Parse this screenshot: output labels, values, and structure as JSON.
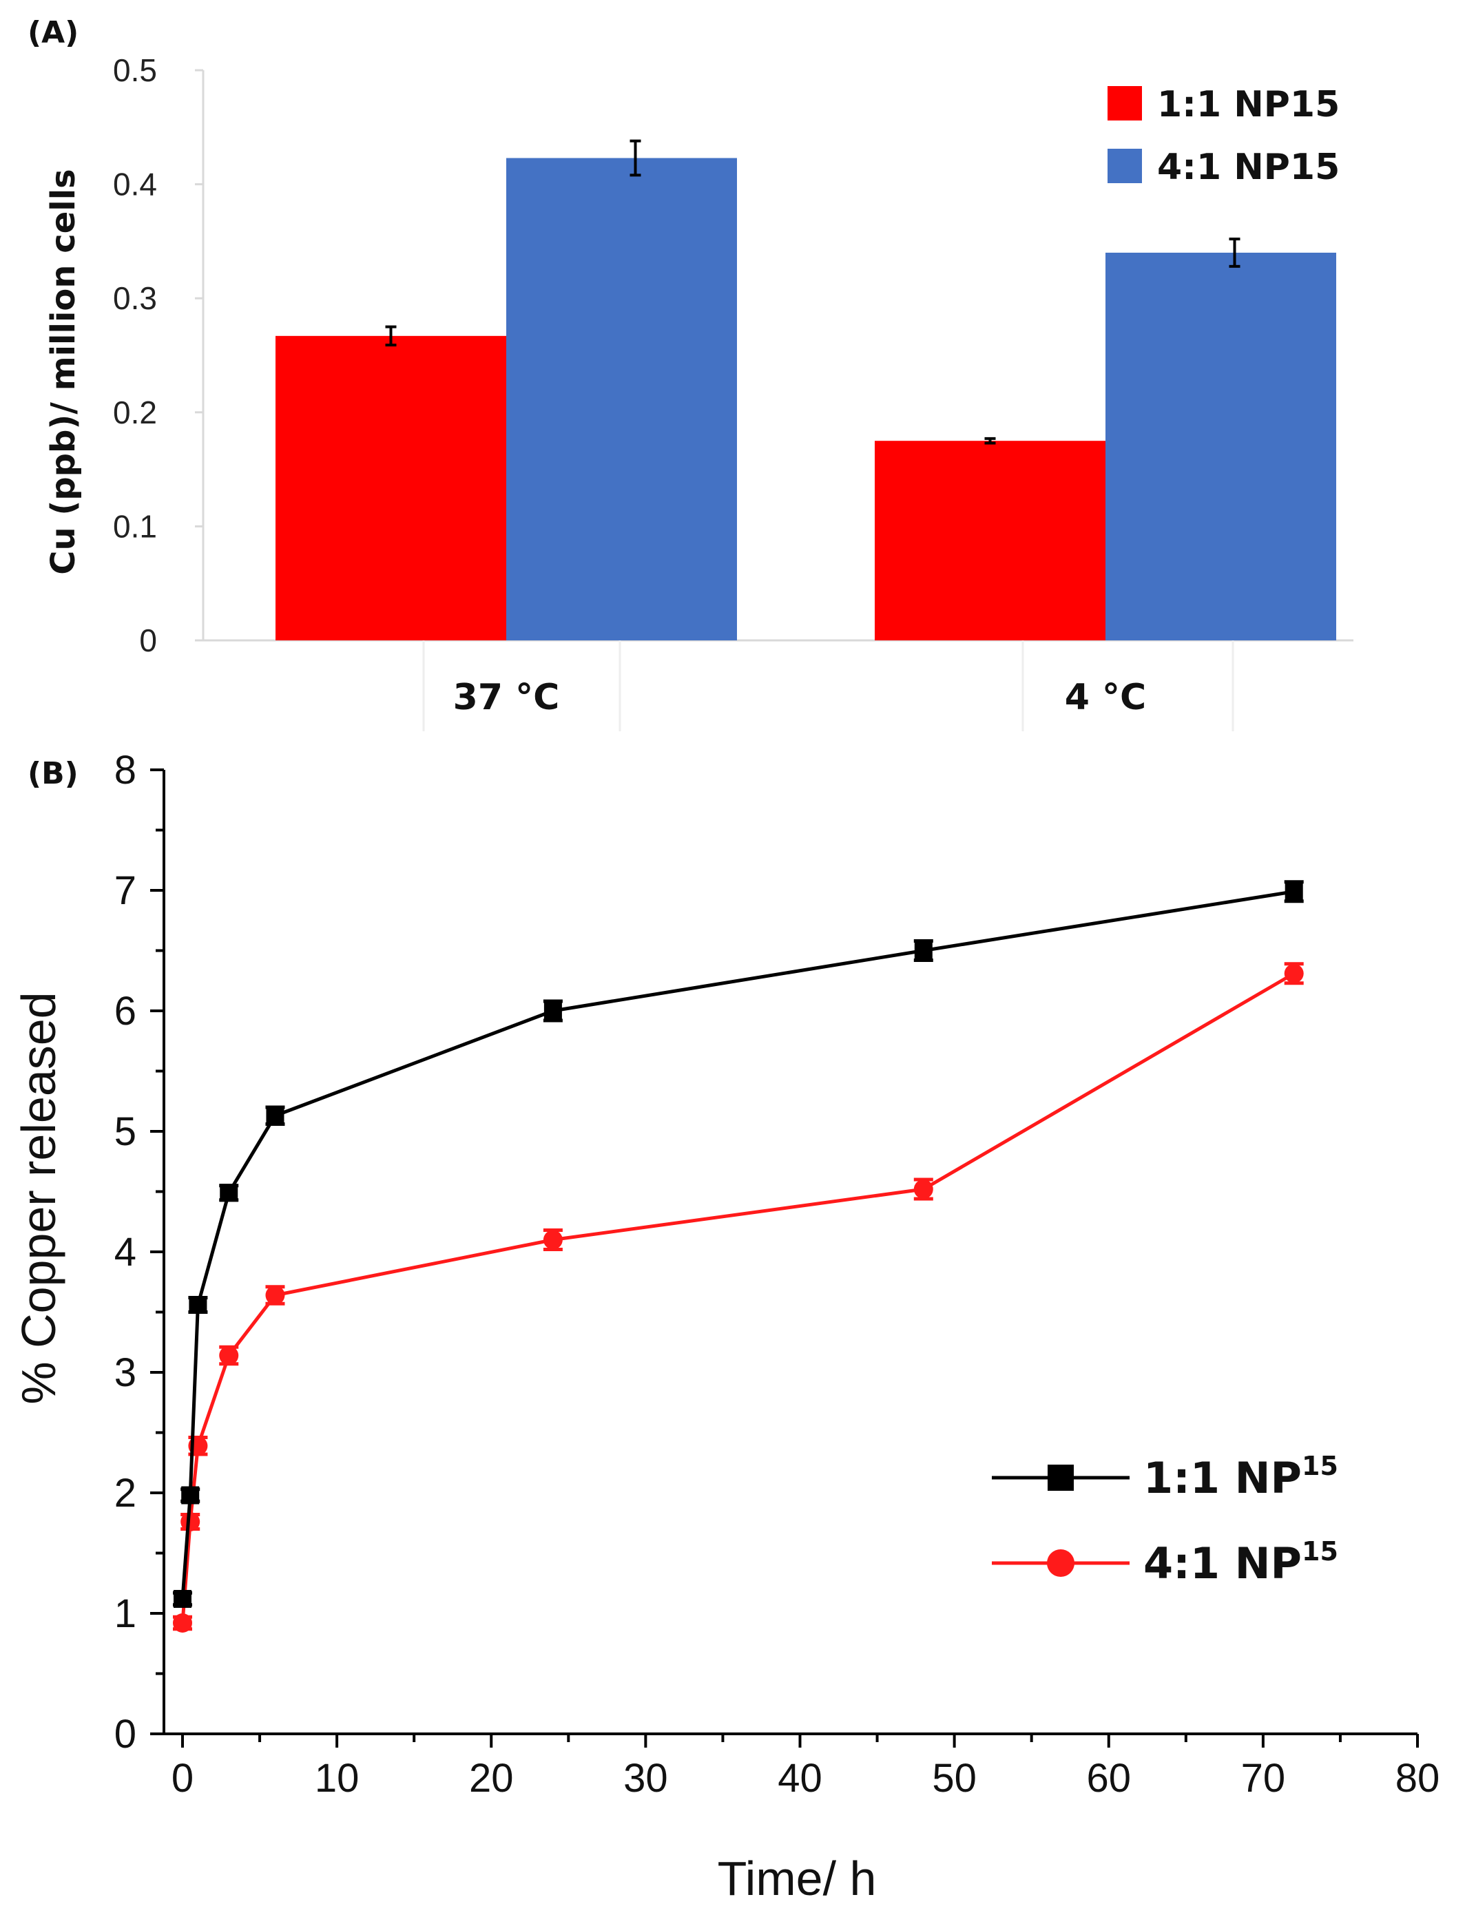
{
  "colors": {
    "red": "#ff0000",
    "blue": "#4472c4",
    "black": "#000000",
    "line_red": "#ff1a1a"
  },
  "chart_data": [
    {
      "panel_label": "(A)",
      "type": "bar",
      "title": "",
      "xlabel": "",
      "ylabel": "Cu (ppb)/ million cells",
      "ylim": [
        0,
        0.5
      ],
      "yticks": [
        0,
        0.1,
        0.2,
        0.3,
        0.4,
        0.5
      ],
      "ytick_labels": [
        "0",
        "0.1",
        "0.2",
        "0.3",
        "0.4",
        "0.5"
      ],
      "categories": [
        "37 °C",
        "4 °C"
      ],
      "legend_position": "top-right",
      "series": [
        {
          "name": "1:1 NP15",
          "color": "#ff0000",
          "values": [
            0.267,
            0.175
          ],
          "errors": [
            0.008,
            0.002
          ]
        },
        {
          "name": "4:1 NP15",
          "color": "#4472c4",
          "values": [
            0.423,
            0.34
          ],
          "errors": [
            0.015,
            0.012
          ]
        }
      ]
    },
    {
      "panel_label": "(B)",
      "type": "line",
      "title": "",
      "xlabel": "Time/ h",
      "ylabel": "% Copper released",
      "xlim": [
        0,
        80
      ],
      "ylim": [
        0,
        8
      ],
      "xticks": [
        0,
        10,
        20,
        30,
        40,
        50,
        60,
        70,
        80
      ],
      "xtick_labels": [
        "0",
        "10",
        "20",
        "30",
        "40",
        "50",
        "60",
        "70",
        "80"
      ],
      "yticks": [
        0,
        1,
        2,
        3,
        4,
        5,
        6,
        7,
        8
      ],
      "ytick_labels": [
        "0",
        "1",
        "2",
        "3",
        "4",
        "5",
        "6",
        "7",
        "8"
      ],
      "legend_position": "bottom-right",
      "series": [
        {
          "name": "1:1 NP",
          "superscript": "15",
          "color": "#000000",
          "marker": "square",
          "x": [
            0,
            0.5,
            1,
            3,
            6,
            24,
            48,
            72
          ],
          "y": [
            1.12,
            1.98,
            3.56,
            4.49,
            5.13,
            6.0,
            6.5,
            6.99
          ],
          "errors": [
            0.05,
            0.05,
            0.06,
            0.06,
            0.07,
            0.08,
            0.08,
            0.08
          ]
        },
        {
          "name": "4:1 NP",
          "superscript": "15",
          "color": "#ff1a1a",
          "marker": "circle",
          "x": [
            0,
            0.5,
            1,
            3,
            6,
            24,
            48,
            72
          ],
          "y": [
            0.92,
            1.76,
            2.39,
            3.14,
            3.64,
            4.1,
            4.52,
            6.31
          ],
          "errors": [
            0.05,
            0.06,
            0.07,
            0.07,
            0.07,
            0.08,
            0.08,
            0.08
          ]
        }
      ]
    }
  ]
}
